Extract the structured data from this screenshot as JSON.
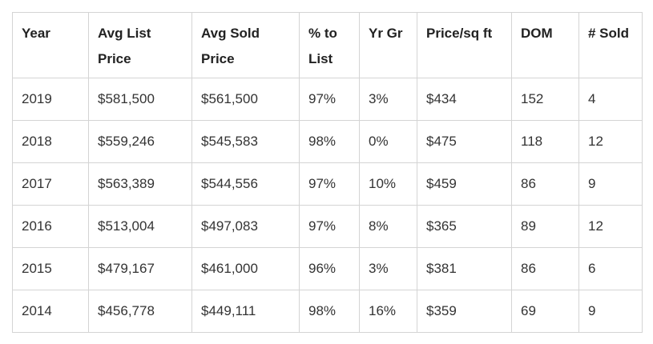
{
  "table": {
    "headers": [
      "Year",
      "Avg List Price",
      "Avg Sold Price",
      "% to List",
      "Yr Gr",
      "Price/sq ft",
      "DOM",
      "# Sold"
    ],
    "rows": [
      [
        "2019",
        "$581,500",
        "$561,500",
        "97%",
        "3%",
        "$434",
        "152",
        "4"
      ],
      [
        "2018",
        "$559,246",
        "$545,583",
        "98%",
        "0%",
        "$475",
        "118",
        "12"
      ],
      [
        "2017",
        "$563,389",
        "$544,556",
        "97%",
        "10%",
        "$459",
        "86",
        "9"
      ],
      [
        "2016",
        "$513,004",
        "$497,083",
        "97%",
        "8%",
        "$365",
        "89",
        "12"
      ],
      [
        "2015",
        "$479,167",
        "$461,000",
        "96%",
        "3%",
        "$381",
        "86",
        "6"
      ],
      [
        "2014",
        "$456,778",
        "$449,111",
        "98%",
        "16%",
        "$359",
        "69",
        "9"
      ]
    ]
  }
}
